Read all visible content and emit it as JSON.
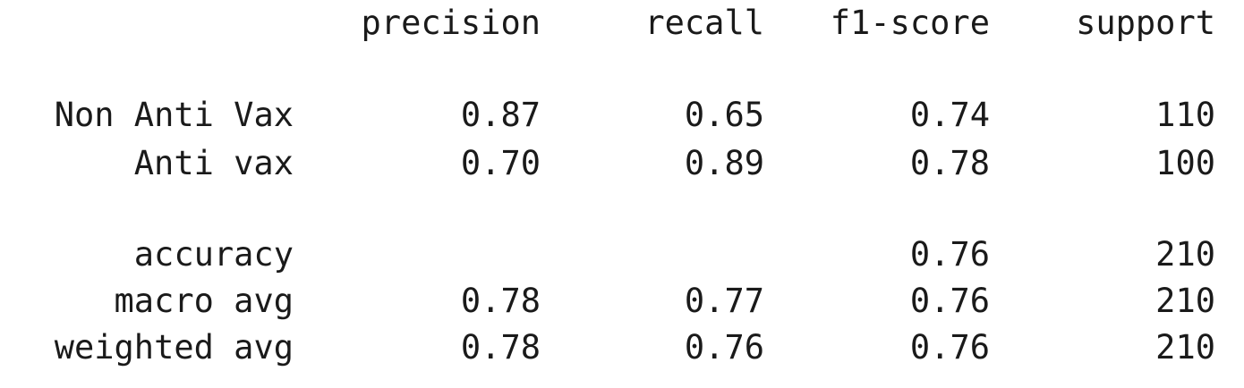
{
  "header": {
    "precision": "precision",
    "recall": "recall",
    "f1_score": "f1-score",
    "support": "support"
  },
  "classes": [
    {
      "label": "Non Anti Vax",
      "precision": "0.87",
      "recall": "0.65",
      "f1_score": "0.74",
      "support": "110"
    },
    {
      "label": "Anti vax",
      "precision": "0.70",
      "recall": "0.89",
      "f1_score": "0.78",
      "support": "100"
    }
  ],
  "accuracy": {
    "label": "accuracy",
    "f1_score": "0.76",
    "support": "210"
  },
  "macro_avg": {
    "label": "macro avg",
    "precision": "0.78",
    "recall": "0.77",
    "f1_score": "0.76",
    "support": "210"
  },
  "weighted_avg": {
    "label": "weighted avg",
    "precision": "0.78",
    "recall": "0.76",
    "f1_score": "0.76",
    "support": "210"
  }
}
